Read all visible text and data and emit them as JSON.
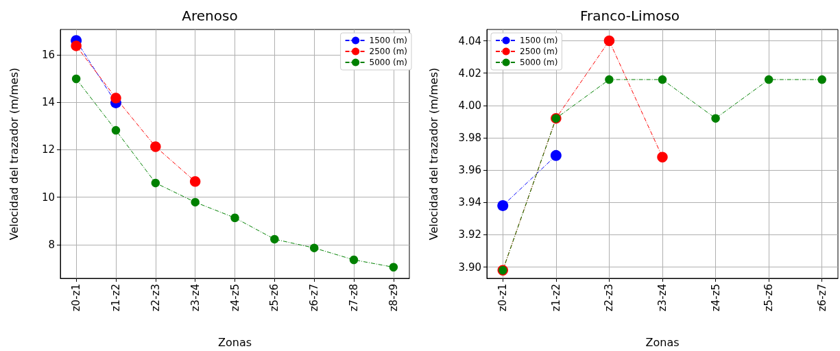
{
  "chart_data": [
    {
      "type": "line",
      "title": "Arenoso",
      "xlabel": "Zonas",
      "ylabel": "Velocidad del trazador (m/mes)",
      "categories": [
        "z0-z1",
        "z1-z2",
        "z2-z3",
        "z3-z4",
        "z4-z5",
        "z5-z6",
        "z6-z7",
        "z7-z8",
        "z8-z9"
      ],
      "ylim": [
        6.58,
        17.07
      ],
      "yticks": [
        8,
        10,
        12,
        14,
        16
      ],
      "grid": true,
      "legend": "top right",
      "marker": "circle",
      "line_style": "dashed",
      "series": [
        {
          "name": "1500 (m)",
          "color": "#0000ff",
          "values": [
            16.6,
            13.98,
            null,
            null,
            null,
            null,
            null,
            null,
            null
          ]
        },
        {
          "name": "2500 (m)",
          "color": "#ff0000",
          "values": [
            16.38,
            14.18,
            12.13,
            10.66,
            null,
            null,
            null,
            null,
            null
          ]
        },
        {
          "name": "5000 (m)",
          "color": "#008000",
          "values": [
            14.99,
            12.82,
            10.6,
            9.79,
            9.13,
            8.23,
            7.86,
            7.36,
            7.05
          ]
        }
      ]
    },
    {
      "type": "line",
      "title": "Franco-Limoso",
      "xlabel": "Zonas",
      "ylabel": "Velocidad del trazador (m/mes)",
      "categories": [
        "z0-z1",
        "z1-z2",
        "z2-z3",
        "z3-z4",
        "z4-z5",
        "z5-z6",
        "z6-z7"
      ],
      "ylim": [
        3.893,
        4.047
      ],
      "yticks": [
        {
          "value": 3.9,
          "label": "3.90"
        },
        {
          "value": 3.92,
          "label": "3.92"
        },
        {
          "value": 3.94,
          "label": "3.94"
        },
        {
          "value": 3.96,
          "label": "3.96"
        },
        {
          "value": 3.98,
          "label": "3.98"
        },
        {
          "value": 4.0,
          "label": "4.00"
        },
        {
          "value": 4.02,
          "label": "4.02"
        },
        {
          "value": 4.04,
          "label": "4.04"
        }
      ],
      "grid": true,
      "legend": "top left",
      "marker": "circle",
      "line_style": "dashed",
      "series": [
        {
          "name": "1500 (m)",
          "color": "#0000ff",
          "values": [
            3.938,
            3.969,
            null,
            null,
            null,
            null,
            null
          ]
        },
        {
          "name": "2500 (m)",
          "color": "#ff0000",
          "values": [
            3.898,
            3.992,
            4.04,
            3.968,
            null,
            null,
            null
          ]
        },
        {
          "name": "5000 (m)",
          "color": "#008000",
          "values": [
            3.898,
            3.992,
            4.016,
            4.016,
            3.992,
            4.016,
            4.016
          ]
        }
      ]
    }
  ]
}
